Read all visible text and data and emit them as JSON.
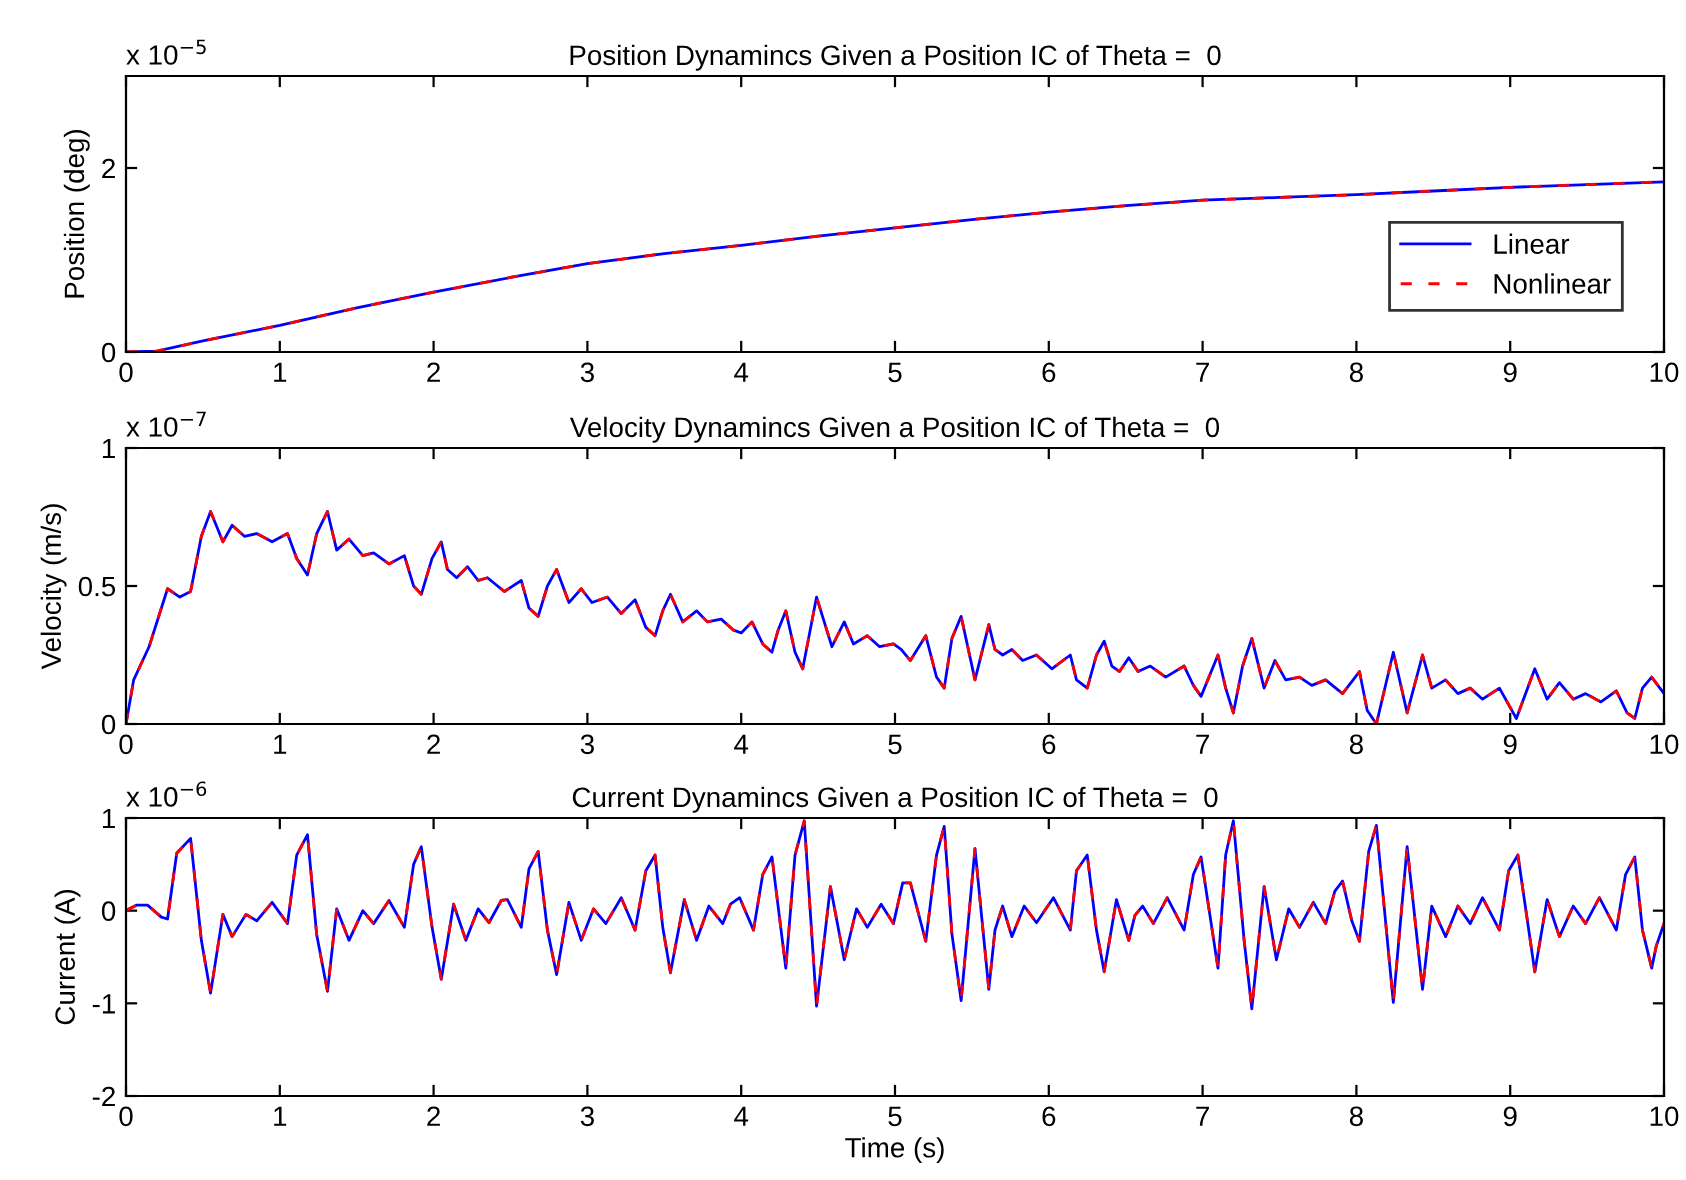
{
  "chart_data": [
    {
      "type": "line",
      "title": "Position Dynamincs Given a Position IC of Theta =  0",
      "ylabel": "Position (deg)",
      "annotations": [
        "x 10$^{−5}$"
      ],
      "x": [
        0,
        0.2,
        0.5,
        1,
        1.5,
        2,
        2.5,
        3,
        3.5,
        4,
        4.5,
        5,
        5.5,
        6,
        6.5,
        7,
        7.5,
        8,
        8.5,
        9,
        9.5,
        10
      ],
      "series": [
        {
          "name": "Linear",
          "color": "#0000ff",
          "line_style": "solid",
          "values": [
            0,
            0.01,
            0.12,
            0.29,
            0.48,
            0.65,
            0.81,
            0.96,
            1.07,
            1.16,
            1.26,
            1.35,
            1.44,
            1.52,
            1.59,
            1.65,
            1.68,
            1.71,
            1.75,
            1.79,
            1.82,
            1.85
          ]
        },
        {
          "name": "Nonlinear",
          "color": "#ff0000",
          "line_style": "dashed",
          "values": [
            0,
            0.01,
            0.12,
            0.29,
            0.48,
            0.65,
            0.81,
            0.96,
            1.07,
            1.16,
            1.26,
            1.35,
            1.44,
            1.52,
            1.59,
            1.65,
            1.68,
            1.71,
            1.75,
            1.79,
            1.82,
            1.85
          ]
        }
      ],
      "xlim": [
        0,
        10
      ],
      "xticks": [
        0,
        1,
        2,
        3,
        4,
        5,
        6,
        7,
        8,
        9,
        10
      ],
      "ylim": [
        0,
        3
      ],
      "yticks": [
        0,
        2
      ],
      "grid": false,
      "legend": "bottom right",
      "marker": "none"
    },
    {
      "type": "line",
      "title": "Velocity Dynamincs Given a Position IC of Theta =  0",
      "ylabel": "Velocity (m/s)",
      "annotations": [
        "x 10$^{−7}$"
      ],
      "x": [
        0,
        0.05,
        0.15,
        0.27,
        0.35,
        0.42,
        0.49,
        0.55,
        0.63,
        0.69,
        0.77,
        0.85,
        0.95,
        1.05,
        1.11,
        1.18,
        1.24,
        1.31,
        1.37,
        1.45,
        1.54,
        1.61,
        1.71,
        1.81,
        1.87,
        1.92,
        1.99,
        2.05,
        2.09,
        2.15,
        2.22,
        2.29,
        2.35,
        2.46,
        2.57,
        2.62,
        2.68,
        2.74,
        2.8,
        2.88,
        2.96,
        3.03,
        3.13,
        3.22,
        3.31,
        3.38,
        3.44,
        3.49,
        3.54,
        3.62,
        3.71,
        3.78,
        3.87,
        3.95,
        4.0,
        4.07,
        4.14,
        4.2,
        4.24,
        4.29,
        4.35,
        4.4,
        4.49,
        4.59,
        4.67,
        4.73,
        4.82,
        4.9,
        4.99,
        5.04,
        5.1,
        5.2,
        5.27,
        5.32,
        5.37,
        5.43,
        5.52,
        5.61,
        5.65,
        5.7,
        5.76,
        5.83,
        5.92,
        6.02,
        6.14,
        6.18,
        6.25,
        6.31,
        6.36,
        6.41,
        6.46,
        6.52,
        6.58,
        6.66,
        6.76,
        6.88,
        6.94,
        6.99,
        7.1,
        7.15,
        7.2,
        7.26,
        7.32,
        7.4,
        7.47,
        7.54,
        7.63,
        7.71,
        7.8,
        7.91,
        8.02,
        8.07,
        8.13,
        8.24,
        8.33,
        8.43,
        8.49,
        8.58,
        8.66,
        8.74,
        8.82,
        8.93,
        9.04,
        9.16,
        9.24,
        9.32,
        9.41,
        9.49,
        9.59,
        9.69,
        9.76,
        9.81,
        9.86,
        9.92,
        10.0
      ],
      "series": [
        {
          "color": "#0000ff",
          "line_style": "solid",
          "values": [
            0,
            0.16,
            0.28,
            0.49,
            0.46,
            0.48,
            0.68,
            0.77,
            0.66,
            0.72,
            0.68,
            0.69,
            0.66,
            0.69,
            0.6,
            0.54,
            0.69,
            0.77,
            0.63,
            0.67,
            0.61,
            0.62,
            0.58,
            0.61,
            0.5,
            0.47,
            0.6,
            0.66,
            0.56,
            0.53,
            0.57,
            0.52,
            0.53,
            0.48,
            0.52,
            0.42,
            0.39,
            0.5,
            0.56,
            0.44,
            0.49,
            0.44,
            0.46,
            0.4,
            0.45,
            0.35,
            0.32,
            0.41,
            0.47,
            0.37,
            0.41,
            0.37,
            0.38,
            0.34,
            0.33,
            0.37,
            0.29,
            0.26,
            0.34,
            0.41,
            0.26,
            0.2,
            0.46,
            0.28,
            0.37,
            0.29,
            0.32,
            0.28,
            0.29,
            0.27,
            0.23,
            0.32,
            0.17,
            0.13,
            0.31,
            0.39,
            0.16,
            0.36,
            0.27,
            0.25,
            0.27,
            0.23,
            0.25,
            0.2,
            0.25,
            0.16,
            0.13,
            0.25,
            0.3,
            0.21,
            0.19,
            0.24,
            0.19,
            0.21,
            0.17,
            0.21,
            0.14,
            0.1,
            0.25,
            0.13,
            0.04,
            0.21,
            0.31,
            0.13,
            0.23,
            0.16,
            0.17,
            0.14,
            0.16,
            0.11,
            0.19,
            0.05,
            0.0,
            0.26,
            0.04,
            0.25,
            0.13,
            0.16,
            0.11,
            0.13,
            0.09,
            0.13,
            0.02,
            0.2,
            0.09,
            0.15,
            0.09,
            0.11,
            0.08,
            0.12,
            0.04,
            0.02,
            0.13,
            0.17,
            0.11
          ]
        },
        {
          "color": "#ff0000",
          "line_style": "dashed",
          "values": [
            0,
            0.16,
            0.28,
            0.49,
            0.46,
            0.48,
            0.68,
            0.77,
            0.66,
            0.72,
            0.68,
            0.69,
            0.66,
            0.69,
            0.6,
            0.54,
            0.69,
            0.77,
            0.63,
            0.67,
            0.61,
            0.62,
            0.58,
            0.61,
            0.5,
            0.47,
            0.6,
            0.66,
            0.56,
            0.53,
            0.57,
            0.52,
            0.53,
            0.48,
            0.52,
            0.42,
            0.39,
            0.5,
            0.56,
            0.44,
            0.49,
            0.44,
            0.46,
            0.4,
            0.45,
            0.35,
            0.32,
            0.41,
            0.47,
            0.37,
            0.41,
            0.37,
            0.38,
            0.34,
            0.33,
            0.37,
            0.29,
            0.26,
            0.34,
            0.41,
            0.26,
            0.2,
            0.46,
            0.28,
            0.37,
            0.29,
            0.32,
            0.28,
            0.29,
            0.27,
            0.23,
            0.32,
            0.17,
            0.13,
            0.31,
            0.39,
            0.16,
            0.36,
            0.27,
            0.25,
            0.27,
            0.23,
            0.25,
            0.2,
            0.25,
            0.16,
            0.13,
            0.25,
            0.3,
            0.21,
            0.19,
            0.24,
            0.19,
            0.21,
            0.17,
            0.21,
            0.14,
            0.1,
            0.25,
            0.13,
            0.04,
            0.21,
            0.31,
            0.13,
            0.23,
            0.16,
            0.17,
            0.14,
            0.16,
            0.11,
            0.19,
            0.05,
            0.0,
            0.26,
            0.04,
            0.25,
            0.13,
            0.16,
            0.11,
            0.13,
            0.09,
            0.13,
            0.02,
            0.2,
            0.09,
            0.15,
            0.09,
            0.11,
            0.08,
            0.12,
            0.04,
            0.02,
            0.13,
            0.17,
            0.11
          ]
        }
      ],
      "xlim": [
        0,
        10
      ],
      "xticks": [
        0,
        1,
        2,
        3,
        4,
        5,
        6,
        7,
        8,
        9,
        10
      ],
      "ylim": [
        0,
        1
      ],
      "yticks": [
        0,
        0.5,
        1
      ],
      "grid": false,
      "marker": "none"
    },
    {
      "type": "line",
      "title": "Current Dynamincs Given a Position IC of Theta =  0",
      "xlabel": "Time (s)",
      "ylabel": "Current (A)",
      "annotations": [
        "x 10$^{−6}$"
      ],
      "x": [
        0,
        0.07,
        0.14,
        0.23,
        0.27,
        0.33,
        0.42,
        0.49,
        0.55,
        0.63,
        0.69,
        0.78,
        0.85,
        0.95,
        1.05,
        1.11,
        1.18,
        1.24,
        1.31,
        1.37,
        1.45,
        1.54,
        1.61,
        1.71,
        1.81,
        1.87,
        1.92,
        1.99,
        2.05,
        2.13,
        2.21,
        2.29,
        2.36,
        2.44,
        2.48,
        2.57,
        2.62,
        2.68,
        2.74,
        2.8,
        2.88,
        2.96,
        3.04,
        3.12,
        3.22,
        3.31,
        3.38,
        3.44,
        3.49,
        3.54,
        3.63,
        3.71,
        3.79,
        3.88,
        3.93,
        3.99,
        4.08,
        4.14,
        4.2,
        4.29,
        4.35,
        4.41,
        4.49,
        4.58,
        4.67,
        4.75,
        4.82,
        4.91,
        4.99,
        5.05,
        5.1,
        5.2,
        5.27,
        5.32,
        5.37,
        5.43,
        5.52,
        5.61,
        5.65,
        5.7,
        5.76,
        5.84,
        5.92,
        6.03,
        6.14,
        6.18,
        6.25,
        6.31,
        6.36,
        6.44,
        6.52,
        6.56,
        6.61,
        6.68,
        6.77,
        6.88,
        6.94,
        6.99,
        7.1,
        7.15,
        7.2,
        7.27,
        7.32,
        7.4,
        7.48,
        7.56,
        7.63,
        7.72,
        7.8,
        7.86,
        7.91,
        7.97,
        8.02,
        8.08,
        8.13,
        8.24,
        8.33,
        8.43,
        8.49,
        8.58,
        8.66,
        8.74,
        8.82,
        8.93,
        8.99,
        9.05,
        9.16,
        9.24,
        9.32,
        9.41,
        9.49,
        9.58,
        9.69,
        9.75,
        9.81,
        9.86,
        9.92,
        9.95,
        10.0
      ],
      "series": [
        {
          "color": "#0000ff",
          "line_style": "solid",
          "values": [
            0,
            0.06,
            0.06,
            -0.07,
            -0.09,
            0.62,
            0.78,
            -0.32,
            -0.89,
            -0.04,
            -0.28,
            -0.04,
            -0.11,
            0.09,
            -0.14,
            0.6,
            0.82,
            -0.26,
            -0.87,
            0.02,
            -0.32,
            0.0,
            -0.14,
            0.11,
            -0.18,
            0.5,
            0.69,
            -0.18,
            -0.74,
            0.07,
            -0.32,
            0.02,
            -0.13,
            0.11,
            0.12,
            -0.18,
            0.45,
            0.64,
            -0.21,
            -0.69,
            0.09,
            -0.32,
            0.02,
            -0.14,
            0.14,
            -0.21,
            0.43,
            0.6,
            -0.18,
            -0.67,
            0.12,
            -0.32,
            0.05,
            -0.14,
            0.07,
            0.14,
            -0.21,
            0.39,
            0.58,
            -0.62,
            0.6,
            0.97,
            -1.03,
            0.26,
            -0.53,
            0.02,
            -0.18,
            0.07,
            -0.14,
            0.3,
            0.3,
            -0.33,
            0.6,
            0.91,
            -0.25,
            -0.97,
            0.67,
            -0.85,
            -0.21,
            0.05,
            -0.28,
            0.05,
            -0.13,
            0.14,
            -0.21,
            0.43,
            0.6,
            -0.21,
            -0.66,
            0.12,
            -0.32,
            -0.05,
            0.05,
            -0.14,
            0.14,
            -0.21,
            0.39,
            0.58,
            -0.62,
            0.6,
            0.97,
            -0.32,
            -1.06,
            0.26,
            -0.53,
            0.02,
            -0.18,
            0.09,
            -0.14,
            0.21,
            0.32,
            -0.11,
            -0.33,
            0.64,
            0.92,
            -0.99,
            0.69,
            -0.85,
            0.05,
            -0.28,
            0.05,
            -0.14,
            0.14,
            -0.21,
            0.43,
            0.6,
            -0.66,
            0.12,
            -0.28,
            0.05,
            -0.14,
            0.14,
            -0.21,
            0.39,
            0.58,
            -0.21,
            -0.62,
            -0.38,
            -0.14
          ]
        },
        {
          "color": "#ff0000",
          "line_style": "dashed",
          "values": [
            0,
            0.06,
            0.06,
            -0.07,
            -0.09,
            0.62,
            0.78,
            -0.32,
            -0.89,
            -0.04,
            -0.28,
            -0.04,
            -0.11,
            0.09,
            -0.14,
            0.6,
            0.82,
            -0.26,
            -0.87,
            0.02,
            -0.32,
            0.0,
            -0.14,
            0.11,
            -0.18,
            0.5,
            0.69,
            -0.18,
            -0.74,
            0.07,
            -0.32,
            0.02,
            -0.13,
            0.11,
            0.12,
            -0.18,
            0.45,
            0.64,
            -0.21,
            -0.69,
            0.09,
            -0.32,
            0.02,
            -0.14,
            0.14,
            -0.21,
            0.43,
            0.6,
            -0.18,
            -0.67,
            0.12,
            -0.32,
            0.05,
            -0.14,
            0.07,
            0.14,
            -0.21,
            0.39,
            0.58,
            -0.62,
            0.6,
            0.97,
            -1.03,
            0.26,
            -0.53,
            0.02,
            -0.18,
            0.07,
            -0.14,
            0.3,
            0.3,
            -0.33,
            0.6,
            0.91,
            -0.25,
            -0.97,
            0.67,
            -0.85,
            -0.21,
            0.05,
            -0.28,
            0.05,
            -0.13,
            0.14,
            -0.21,
            0.43,
            0.6,
            -0.21,
            -0.66,
            0.12,
            -0.32,
            -0.05,
            0.05,
            -0.14,
            0.14,
            -0.21,
            0.39,
            0.58,
            -0.62,
            0.6,
            0.97,
            -0.32,
            -1.06,
            0.26,
            -0.53,
            0.02,
            -0.18,
            0.09,
            -0.14,
            0.21,
            0.32,
            -0.11,
            -0.33,
            0.64,
            0.92,
            -0.99,
            0.69,
            -0.85,
            0.05,
            -0.28,
            0.05,
            -0.14,
            0.14,
            -0.21,
            0.43,
            0.6,
            -0.66,
            0.12,
            -0.28,
            0.05,
            -0.14,
            0.14,
            -0.21,
            0.39,
            0.58,
            -0.21,
            -0.62,
            -0.38,
            -0.14
          ]
        }
      ],
      "xlim": [
        0,
        10
      ],
      "xticks": [
        0,
        1,
        2,
        3,
        4,
        5,
        6,
        7,
        8,
        9,
        10
      ],
      "ylim": [
        -2,
        1
      ],
      "yticks": [
        -2,
        -1,
        0,
        1
      ],
      "grid": false,
      "marker": "none"
    }
  ]
}
